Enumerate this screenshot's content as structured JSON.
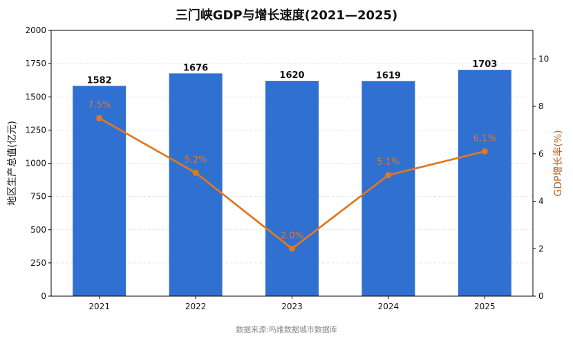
{
  "title": "三门峡GDP与增长速度(2021—2025)",
  "source": "数据来源:吗维数据城市数据库",
  "colors": {
    "bar": "#3070d0",
    "line": "#e07820",
    "right_axis_label": "#c0621a",
    "grid": "#dddddd"
  },
  "chart_data": {
    "type": "bar+line",
    "categories": [
      "2021",
      "2022",
      "2023",
      "2024",
      "2025"
    ],
    "series": [
      {
        "kind": "bar",
        "axis": "left",
        "values": [
          1582,
          1676,
          1620,
          1619,
          1703
        ],
        "labels": [
          "1582",
          "1676",
          "1620",
          "1619",
          "1703"
        ]
      },
      {
        "kind": "line",
        "axis": "right",
        "values": [
          7.5,
          5.2,
          2.0,
          5.1,
          6.1
        ],
        "labels": [
          "7.5%",
          "5.2%",
          "2.0%",
          "5.1%",
          "6.1%"
        ]
      }
    ],
    "left_axis": {
      "label": "地区生产总值(亿元)",
      "range": [
        0,
        2000
      ],
      "ticks": [
        0,
        250,
        500,
        750,
        1000,
        1250,
        1500,
        1750,
        2000
      ]
    },
    "right_axis": {
      "label": "GDP增长率(%)",
      "range": [
        0,
        11.2
      ],
      "ticks": [
        0,
        2,
        4,
        6,
        8,
        10
      ]
    },
    "grid": "horizontal dashed"
  }
}
